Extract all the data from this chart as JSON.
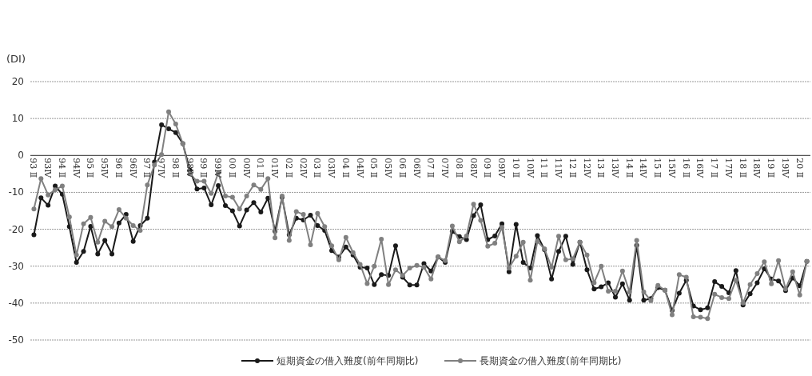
{
  "chart_data": {
    "type": "line",
    "ylabel": "(DI)",
    "categories": [
      "93 Ⅱ",
      null,
      "93Ⅳ",
      null,
      "94 Ⅱ",
      null,
      "94Ⅳ",
      null,
      "95 Ⅱ",
      null,
      "95Ⅳ",
      null,
      "96 Ⅱ",
      null,
      "96Ⅳ",
      null,
      "97 Ⅱ",
      null,
      "97Ⅳ",
      null,
      "98 Ⅱ",
      null,
      "98Ⅳ",
      null,
      "99 Ⅱ",
      null,
      "99Ⅳ",
      null,
      "00 Ⅱ",
      null,
      "00Ⅳ",
      null,
      "01 Ⅱ",
      null,
      "01Ⅳ",
      null,
      "02 Ⅱ",
      null,
      "02Ⅳ",
      null,
      "03 Ⅱ",
      null,
      "03Ⅳ",
      null,
      "04 Ⅱ",
      null,
      "04Ⅳ",
      null,
      "05 Ⅱ",
      null,
      "05Ⅳ",
      null,
      "06 Ⅱ",
      null,
      "06Ⅳ",
      null,
      "07 Ⅱ",
      null,
      "07Ⅳ",
      null,
      "08 Ⅱ",
      null,
      "08Ⅳ",
      null,
      "09 Ⅱ",
      null,
      "09Ⅳ",
      null,
      "10 Ⅱ",
      null,
      "10Ⅳ",
      null,
      "11 Ⅱ",
      null,
      "11Ⅳ",
      null,
      "12 Ⅱ",
      null,
      "12Ⅳ",
      null,
      "13 Ⅱ",
      null,
      "13Ⅳ",
      null,
      "14 Ⅱ",
      null,
      "14Ⅳ",
      null,
      "15 Ⅱ",
      null,
      "15Ⅳ",
      null,
      "16 Ⅱ",
      null,
      "16Ⅳ",
      null,
      "17 Ⅱ",
      null,
      "17Ⅳ",
      null,
      "18 Ⅱ",
      null,
      "18Ⅳ",
      null,
      "19 Ⅱ",
      null,
      "19Ⅳ",
      null,
      "20 Ⅱ",
      null
    ],
    "series": [
      {
        "name": "短期資金の借入難度(前年同期比)",
        "color": "#1a1a1a",
        "values": [
          -21.5,
          -11.5,
          -13.5,
          -8.3,
          -10.5,
          -19.3,
          -29,
          -26,
          -19.2,
          -26.7,
          -23,
          -26.7,
          -18.3,
          -16,
          -23.3,
          -19,
          -17,
          -1.8,
          8.3,
          7.2,
          6.2,
          3.2,
          -4,
          -9.1,
          -8.8,
          -13.4,
          -8.2,
          -13.6,
          -15,
          -19.1,
          -14.8,
          -12.8,
          -15.3,
          -11.6,
          -20.5,
          -11.3,
          -21.5,
          -17,
          -17.5,
          -16.2,
          -19,
          -20.3,
          -25.8,
          -27.5,
          -24.8,
          -27,
          -30.3,
          -30.5,
          -35,
          -32.3,
          -32.5,
          -24.5,
          -33,
          -35.1,
          -35.1,
          -29.3,
          -31.3,
          -27.5,
          -29,
          -20.6,
          -22,
          -22.8,
          -16.3,
          -13.4,
          -22.8,
          -21.8,
          -18.5,
          -31.5,
          -18.7,
          -29,
          -30.5,
          -21.7,
          -25.5,
          -33.5,
          -26,
          -21.9,
          -29.5,
          -23.5,
          -31,
          -36.2,
          -35.6,
          -34.5,
          -38.4,
          -34.8,
          -39.2,
          -24.4,
          -39.2,
          -38.8,
          -35.8,
          -36.5,
          -42,
          -37.3,
          -33.8,
          -40.8,
          -41.8,
          -41.3,
          -34.2,
          -35.5,
          -37.2,
          -31.2,
          -40.5,
          -37.5,
          -34.5,
          -30.7,
          -33.5,
          -34,
          -36.6,
          -33.2,
          -35.3,
          -28.7
        ]
      },
      {
        "name": "長期資金の借入難度(前年同期比)",
        "color": "#808080",
        "values": [
          -14.5,
          -6.3,
          -10.7,
          -9.3,
          -8.3,
          -16.7,
          -27,
          -18.5,
          -16.8,
          -23.5,
          -17.8,
          -19.3,
          -14.7,
          -17,
          -19,
          -20.3,
          -8,
          -2.6,
          0.2,
          11.8,
          8.5,
          3.2,
          -5,
          -7,
          -7,
          -10.3,
          -4.7,
          -11,
          -11.3,
          -14.5,
          -11,
          -8,
          -9.2,
          -6.3,
          -22.3,
          -11,
          -23,
          -15.2,
          -16,
          -24.2,
          -15.7,
          -19.3,
          -24.5,
          -28.3,
          -22.2,
          -26.3,
          -29.5,
          -34.7,
          -30,
          -22.7,
          -35,
          -31,
          -32.5,
          -30.5,
          -29.8,
          -30.3,
          -33.5,
          -27.5,
          -28.5,
          -19.1,
          -23.4,
          -21.8,
          -13.2,
          -17.6,
          -24.6,
          -23.8,
          -19.5,
          -30.5,
          -27.3,
          -23.5,
          -33.8,
          -23.3,
          -25.3,
          -30.3,
          -21.9,
          -28.3,
          -28,
          -23.5,
          -27,
          -34.5,
          -30,
          -36.8,
          -36.8,
          -31.3,
          -37,
          -23,
          -37,
          -39.3,
          -35.2,
          -36.5,
          -43.2,
          -32.3,
          -33,
          -43.7,
          -43.8,
          -44.2,
          -37.6,
          -38.5,
          -38.8,
          -33.8,
          -40,
          -35,
          -32,
          -28.8,
          -34.8,
          -28.5,
          -36.2,
          -31.5,
          -37.8,
          -28.7
        ]
      }
    ],
    "ylim": [
      -50,
      20
    ],
    "yticks": [
      -50,
      -40,
      -30,
      -20,
      -10,
      0,
      10,
      20
    ],
    "grid": "y",
    "legend": "bottom",
    "marker": "circle"
  }
}
